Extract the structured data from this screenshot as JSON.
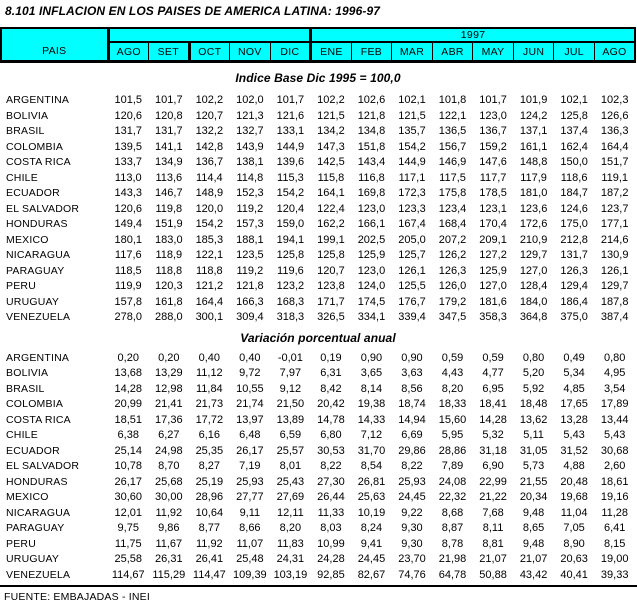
{
  "title": "8.101  INFLACION EN LOS PAISES DE AMERICA LATINA: 1996-97",
  "colors": {
    "header_bg": "#00FFFF",
    "border": "#000000",
    "page_bg": "#FFFFFF"
  },
  "table": {
    "pais_label": "PAIS",
    "year_1996_label": "",
    "year_1997_label": "1997",
    "months": [
      "AGO",
      "SET",
      "OCT",
      "NOV",
      "DIC",
      "ENE",
      "FEB",
      "MAR",
      "ABR",
      "MAY",
      "JUN",
      "JUL",
      "AGO"
    ],
    "sections": [
      {
        "heading": "Indice Base Dic 1995 = 100,0",
        "rows": [
          {
            "country": "ARGENTINA",
            "values": [
              "101,5",
              "101,7",
              "102,2",
              "102,0",
              "101,7",
              "102,2",
              "102,6",
              "102,1",
              "101,8",
              "101,7",
              "101,9",
              "102,1",
              "102,3"
            ]
          },
          {
            "country": "BOLIVIA",
            "values": [
              "120,6",
              "120,8",
              "120,7",
              "121,3",
              "121,6",
              "121,5",
              "121,8",
              "121,5",
              "122,1",
              "123,0",
              "124,2",
              "125,8",
              "126,6"
            ]
          },
          {
            "country": "BRASIL",
            "values": [
              "131,7",
              "131,7",
              "132,2",
              "132,7",
              "133,1",
              "134,2",
              "134,8",
              "135,7",
              "136,5",
              "136,7",
              "137,1",
              "137,4",
              "136,3"
            ]
          },
          {
            "country": "COLOMBIA",
            "values": [
              "139,5",
              "141,1",
              "142,8",
              "143,9",
              "144,9",
              "147,3",
              "151,8",
              "154,2",
              "156,7",
              "159,2",
              "161,1",
              "162,4",
              "164,4"
            ]
          },
          {
            "country": "COSTA RICA",
            "values": [
              "133,7",
              "134,9",
              "136,7",
              "138,1",
              "139,6",
              "142,5",
              "143,4",
              "144,9",
              "146,9",
              "147,6",
              "148,8",
              "150,0",
              "151,7"
            ]
          },
          {
            "country": "CHILE",
            "values": [
              "113,0",
              "113,6",
              "114,4",
              "114,8",
              "115,3",
              "115,8",
              "116,8",
              "117,1",
              "117,5",
              "117,7",
              "117,9",
              "118,6",
              "119,1"
            ]
          },
          {
            "country": "ECUADOR",
            "values": [
              "143,3",
              "146,7",
              "148,9",
              "152,3",
              "154,2",
              "164,1",
              "169,8",
              "172,3",
              "175,8",
              "178,5",
              "181,0",
              "184,7",
              "187,2"
            ]
          },
          {
            "country": "EL SALVADOR",
            "values": [
              "120,6",
              "119,8",
              "120,0",
              "119,2",
              "120,4",
              "122,4",
              "123,0",
              "123,3",
              "123,4",
              "123,1",
              "123,6",
              "124,6",
              "123,7"
            ]
          },
          {
            "country": "HONDURAS",
            "values": [
              "149,4",
              "151,9",
              "154,2",
              "157,3",
              "159,0",
              "162,2",
              "166,1",
              "167,4",
              "168,4",
              "170,4",
              "172,6",
              "175,0",
              "177,1"
            ]
          },
          {
            "country": "MEXICO",
            "values": [
              "180,1",
              "183,0",
              "185,3",
              "188,1",
              "194,1",
              "199,1",
              "202,5",
              "205,0",
              "207,2",
              "209,1",
              "210,9",
              "212,8",
              "214,6"
            ]
          },
          {
            "country": "NICARAGUA",
            "values": [
              "117,6",
              "118,9",
              "122,1",
              "123,5",
              "125,8",
              "125,8",
              "125,9",
              "125,7",
              "126,2",
              "127,2",
              "129,7",
              "131,7",
              "130,9"
            ]
          },
          {
            "country": "PARAGUAY",
            "values": [
              "118,5",
              "118,8",
              "118,8",
              "119,2",
              "119,6",
              "120,7",
              "123,0",
              "126,1",
              "126,3",
              "125,9",
              "127,0",
              "126,3",
              "126,1"
            ]
          },
          {
            "country": "PERU",
            "values": [
              "119,9",
              "120,3",
              "121,2",
              "121,8",
              "123,2",
              "123,8",
              "124,0",
              "125,5",
              "126,0",
              "127,0",
              "128,4",
              "129,4",
              "129,7"
            ]
          },
          {
            "country": "URUGUAY",
            "values": [
              "157,8",
              "161,8",
              "164,4",
              "166,3",
              "168,3",
              "171,7",
              "174,5",
              "176,7",
              "179,2",
              "181,6",
              "184,0",
              "186,4",
              "187,8"
            ]
          },
          {
            "country": "VENEZUELA",
            "values": [
              "278,0",
              "288,0",
              "300,1",
              "309,4",
              "318,3",
              "326,5",
              "334,1",
              "339,4",
              "347,5",
              "358,3",
              "364,8",
              "375,0",
              "387,4"
            ]
          }
        ]
      },
      {
        "heading": "Variación porcentual anual",
        "rows": [
          {
            "country": "ARGENTINA",
            "values": [
              "0,20",
              "0,20",
              "0,40",
              "0,40",
              "-0,01",
              "0,19",
              "0,90",
              "0,90",
              "0,59",
              "0,59",
              "0,80",
              "0,49",
              "0,80"
            ]
          },
          {
            "country": "BOLIVIA",
            "values": [
              "13,68",
              "13,29",
              "11,12",
              "9,72",
              "7,97",
              "6,31",
              "3,65",
              "3,63",
              "4,43",
              "4,77",
              "5,20",
              "5,34",
              "4,95"
            ]
          },
          {
            "country": "BRASIL",
            "values": [
              "14,28",
              "12,98",
              "11,84",
              "10,55",
              "9,12",
              "8,42",
              "8,14",
              "8,56",
              "8,20",
              "6,95",
              "5,92",
              "4,85",
              "3,54"
            ]
          },
          {
            "country": "COLOMBIA",
            "values": [
              "20,99",
              "21,41",
              "21,73",
              "21,74",
              "21,50",
              "20,42",
              "19,38",
              "18,74",
              "18,33",
              "18,41",
              "18,48",
              "17,65",
              "17,89"
            ]
          },
          {
            "country": "COSTA RICA",
            "values": [
              "18,51",
              "17,36",
              "17,72",
              "13,97",
              "13,89",
              "14,78",
              "14,33",
              "14,94",
              "15,60",
              "14,28",
              "13,62",
              "13,28",
              "13,44"
            ]
          },
          {
            "country": "CHILE",
            "values": [
              "6,38",
              "6,27",
              "6,16",
              "6,48",
              "6,59",
              "6,80",
              "7,12",
              "6,69",
              "5,95",
              "5,32",
              "5,11",
              "5,43",
              "5,43"
            ]
          },
          {
            "country": "ECUADOR",
            "values": [
              "25,14",
              "24,98",
              "25,35",
              "26,17",
              "25,57",
              "30,53",
              "31,70",
              "29,86",
              "28,86",
              "31,18",
              "31,05",
              "31,52",
              "30,68"
            ]
          },
          {
            "country": "EL SALVADOR",
            "values": [
              "10,78",
              "8,70",
              "8,27",
              "7,19",
              "8,01",
              "8,22",
              "8,54",
              "8,22",
              "7,89",
              "6,90",
              "5,73",
              "4,88",
              "2,60"
            ]
          },
          {
            "country": "HONDURAS",
            "values": [
              "26,17",
              "25,68",
              "25,19",
              "25,93",
              "25,43",
              "27,30",
              "26,81",
              "25,93",
              "24,08",
              "22,99",
              "21,55",
              "20,48",
              "18,61"
            ]
          },
          {
            "country": "MEXICO",
            "values": [
              "30,60",
              "30,00",
              "28,96",
              "27,77",
              "27,69",
              "26,44",
              "25,63",
              "24,45",
              "22,32",
              "21,22",
              "20,34",
              "19,68",
              "19,16"
            ]
          },
          {
            "country": "NICARAGUA",
            "values": [
              "12,01",
              "11,92",
              "10,64",
              "9,11",
              "12,11",
              "11,33",
              "10,19",
              "9,22",
              "8,68",
              "7,68",
              "9,48",
              "11,04",
              "11,28"
            ]
          },
          {
            "country": "PARAGUAY",
            "values": [
              "9,75",
              "9,86",
              "8,77",
              "8,66",
              "8,20",
              "8,03",
              "8,24",
              "9,30",
              "8,87",
              "8,11",
              "8,65",
              "7,05",
              "6,41"
            ]
          },
          {
            "country": "PERU",
            "values": [
              "11,75",
              "11,67",
              "11,92",
              "11,07",
              "11,83",
              "10,99",
              "9,41",
              "9,30",
              "8,78",
              "8,81",
              "9,48",
              "8,90",
              "8,15"
            ]
          },
          {
            "country": "URUGUAY",
            "values": [
              "25,58",
              "26,31",
              "26,41",
              "25,48",
              "24,31",
              "24,28",
              "24,45",
              "23,70",
              "21,98",
              "21,07",
              "21,07",
              "20,63",
              "19,00"
            ]
          },
          {
            "country": "VENEZUELA",
            "values": [
              "114,67",
              "115,29",
              "114,47",
              "109,39",
              "103,19",
              "92,85",
              "82,67",
              "74,76",
              "64,78",
              "50,88",
              "43,42",
              "40,41",
              "39,33"
            ]
          }
        ]
      }
    ]
  },
  "footer": {
    "source": "FUENTE: EMBAJADAS - INEI"
  }
}
